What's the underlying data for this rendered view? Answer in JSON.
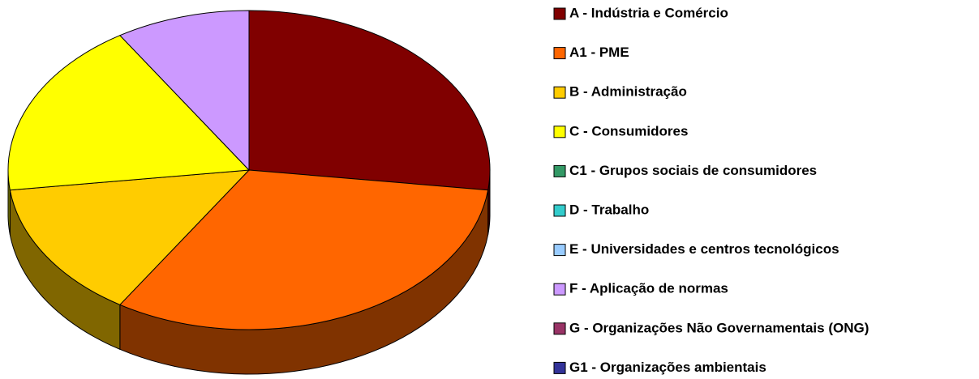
{
  "chart_data": {
    "type": "pie",
    "categories": [
      "A - Indústria e Comércio",
      "A1 - PME",
      "B - Administração",
      "C - Consumidores",
      "C1 - Grupos sociais de consumidores",
      "D - Trabalho",
      "E - Universidades e centros tecnológicos",
      "F - Aplicação de normas",
      "G - Organizações Não Governamentais (ONG)",
      "G1 - Organizações ambientais"
    ],
    "values": [
      27,
      32,
      14,
      18,
      0,
      0,
      0,
      9,
      0,
      0
    ],
    "colors": [
      "#800000",
      "#ff6600",
      "#ffcc00",
      "#ffff00",
      "#339966",
      "#33cccc",
      "#99ccff",
      "#cc99ff",
      "#993366",
      "#333399"
    ],
    "legend": "right"
  }
}
